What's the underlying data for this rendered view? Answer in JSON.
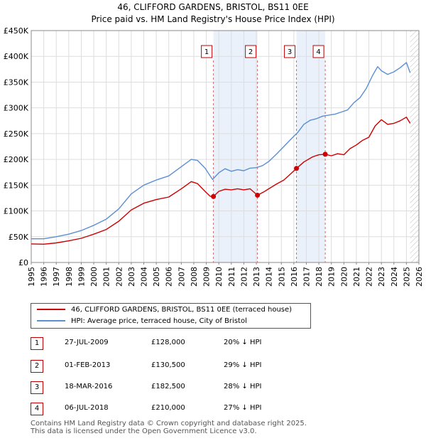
{
  "chart_data": {
    "type": "line",
    "title": "46, CLIFFORD GARDENS, BRISTOL, BS11 0EE",
    "subtitle": "Price paid vs. HM Land Registry's House Price Index (HPI)",
    "xlim": [
      1995,
      2026
    ],
    "ylim": [
      0,
      450000
    ],
    "x_ticks": [
      "1995",
      "1996",
      "1997",
      "1998",
      "1999",
      "2000",
      "2001",
      "2002",
      "2003",
      "2004",
      "2005",
      "2006",
      "2007",
      "2008",
      "2009",
      "2010",
      "2011",
      "2012",
      "2013",
      "2014",
      "2015",
      "2016",
      "2017",
      "2018",
      "2019",
      "2020",
      "2021",
      "2022",
      "2023",
      "2024",
      "2025",
      "2026"
    ],
    "y_ticks": [
      {
        "value": 0,
        "label": "£0"
      },
      {
        "value": 50000,
        "label": "£50K"
      },
      {
        "value": 100000,
        "label": "£100K"
      },
      {
        "value": 150000,
        "label": "£150K"
      },
      {
        "value": 200000,
        "label": "£200K"
      },
      {
        "value": 250000,
        "label": "£250K"
      },
      {
        "value": 300000,
        "label": "£300K"
      },
      {
        "value": 350000,
        "label": "£350K"
      },
      {
        "value": 400000,
        "label": "£400K"
      },
      {
        "value": 450000,
        "label": "£450K"
      }
    ],
    "grid": true,
    "series": [
      {
        "name": "46, CLIFFORD GARDENS, BRISTOL, BS11 0EE (terraced house)",
        "color": "#cc0000",
        "points": [
          [
            1995.0,
            36000
          ],
          [
            1996.0,
            35500
          ],
          [
            1997.0,
            38000
          ],
          [
            1998.0,
            42000
          ],
          [
            1999.0,
            47000
          ],
          [
            2000.0,
            55000
          ],
          [
            2001.0,
            64000
          ],
          [
            2002.0,
            80000
          ],
          [
            2003.0,
            102000
          ],
          [
            2004.0,
            115000
          ],
          [
            2005.0,
            122000
          ],
          [
            2006.0,
            127000
          ],
          [
            2007.0,
            143000
          ],
          [
            2007.8,
            157000
          ],
          [
            2008.3,
            153000
          ],
          [
            2008.9,
            138000
          ],
          [
            2009.3,
            128500
          ],
          [
            2009.57,
            128000
          ],
          [
            2010.0,
            138000
          ],
          [
            2010.5,
            142000
          ],
          [
            2011.0,
            141000
          ],
          [
            2011.5,
            143000
          ],
          [
            2012.0,
            141000
          ],
          [
            2012.5,
            143000
          ],
          [
            2013.09,
            130500
          ],
          [
            2013.6,
            137000
          ],
          [
            2014.0,
            143000
          ],
          [
            2014.6,
            152000
          ],
          [
            2015.2,
            160000
          ],
          [
            2015.7,
            171000
          ],
          [
            2016.21,
            182500
          ],
          [
            2016.8,
            195000
          ],
          [
            2017.5,
            205000
          ],
          [
            2018.0,
            209000
          ],
          [
            2018.51,
            210000
          ],
          [
            2019.0,
            207000
          ],
          [
            2019.5,
            211000
          ],
          [
            2020.0,
            209000
          ],
          [
            2020.5,
            221000
          ],
          [
            2021.0,
            228000
          ],
          [
            2021.5,
            237000
          ],
          [
            2022.0,
            243000
          ],
          [
            2022.5,
            265000
          ],
          [
            2023.0,
            277000
          ],
          [
            2023.5,
            268000
          ],
          [
            2024.0,
            270000
          ],
          [
            2024.5,
            275000
          ],
          [
            2025.0,
            282000
          ],
          [
            2025.3,
            270000
          ]
        ]
      },
      {
        "name": "HPI: Average price, terraced house, City of Bristol",
        "color": "#5b8fd4",
        "points": [
          [
            1995.0,
            46000
          ],
          [
            1996.0,
            46000
          ],
          [
            1997.0,
            50000
          ],
          [
            1998.0,
            55000
          ],
          [
            1999.0,
            62000
          ],
          [
            2000.0,
            72000
          ],
          [
            2001.0,
            84000
          ],
          [
            2002.0,
            104000
          ],
          [
            2003.0,
            133000
          ],
          [
            2004.0,
            150000
          ],
          [
            2005.0,
            160000
          ],
          [
            2006.0,
            168000
          ],
          [
            2007.0,
            186000
          ],
          [
            2007.8,
            200000
          ],
          [
            2008.3,
            198000
          ],
          [
            2008.9,
            183000
          ],
          [
            2009.5,
            161000
          ],
          [
            2010.0,
            174000
          ],
          [
            2010.5,
            182000
          ],
          [
            2011.0,
            177000
          ],
          [
            2011.5,
            180000
          ],
          [
            2012.0,
            178000
          ],
          [
            2012.5,
            183000
          ],
          [
            2013.0,
            184000
          ],
          [
            2013.5,
            188000
          ],
          [
            2014.0,
            196000
          ],
          [
            2014.6,
            210000
          ],
          [
            2015.2,
            225000
          ],
          [
            2015.8,
            240000
          ],
          [
            2016.3,
            252000
          ],
          [
            2016.8,
            268000
          ],
          [
            2017.3,
            276000
          ],
          [
            2017.8,
            279000
          ],
          [
            2018.3,
            284000
          ],
          [
            2018.8,
            286000
          ],
          [
            2019.3,
            288000
          ],
          [
            2019.8,
            292000
          ],
          [
            2020.3,
            296000
          ],
          [
            2020.8,
            310000
          ],
          [
            2021.3,
            320000
          ],
          [
            2021.8,
            338000
          ],
          [
            2022.3,
            363000
          ],
          [
            2022.7,
            380000
          ],
          [
            2023.0,
            372000
          ],
          [
            2023.5,
            365000
          ],
          [
            2024.0,
            370000
          ],
          [
            2024.5,
            378000
          ],
          [
            2025.0,
            388000
          ],
          [
            2025.3,
            368000
          ]
        ]
      }
    ],
    "sales": [
      {
        "n": "1",
        "x": 2009.57,
        "value": 128000
      },
      {
        "n": "2",
        "x": 2013.09,
        "value": 130500
      },
      {
        "n": "3",
        "x": 2016.21,
        "value": 182500
      },
      {
        "n": "4",
        "x": 2018.51,
        "value": 210000
      }
    ],
    "highlight_spans": [
      [
        2009.57,
        2013.09
      ],
      [
        2016.21,
        2018.51
      ]
    ],
    "hatch_from": 2025.3
  },
  "legend": {
    "items": [
      {
        "label": "46, CLIFFORD GARDENS, BRISTOL, BS11 0EE (terraced house)",
        "color": "#cc0000"
      },
      {
        "label": "HPI: Average price, terraced house, City of Bristol",
        "color": "#5b8fd4"
      }
    ]
  },
  "sales_table": [
    {
      "n": "1",
      "date": "27-JUL-2009",
      "price": "£128,000",
      "hpi": "20% ↓ HPI"
    },
    {
      "n": "2",
      "date": "01-FEB-2013",
      "price": "£130,500",
      "hpi": "29% ↓ HPI"
    },
    {
      "n": "3",
      "date": "18-MAR-2016",
      "price": "£182,500",
      "hpi": "28% ↓ HPI"
    },
    {
      "n": "4",
      "date": "06-JUL-2018",
      "price": "£210,000",
      "hpi": "27% ↓ HPI"
    }
  ],
  "footer": {
    "line1": "Contains HM Land Registry data © Crown copyright and database right 2025.",
    "line2": "This data is licensed under the Open Government Licence v3.0."
  }
}
